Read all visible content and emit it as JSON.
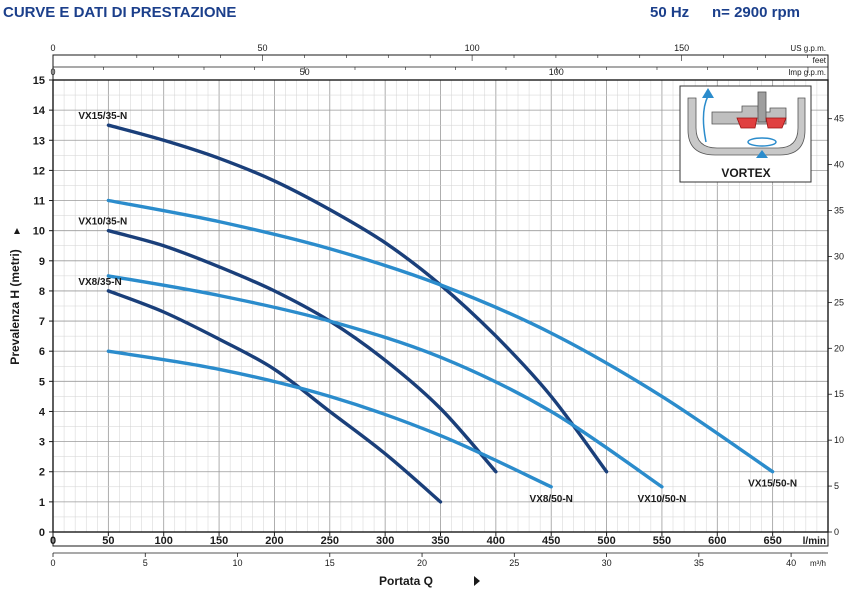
{
  "header": {
    "title": "CURVE E DATI DI PRESTAZIONE",
    "frequency": "50 Hz",
    "rpm": "n= 2900 rpm"
  },
  "chart_data": {
    "type": "line",
    "ylabel": "Prevalenza H (metri)",
    "xlabel": "Portata Q",
    "x_unit_main": "l/min",
    "x_unit_m3h": "m³/h",
    "x_unit_us": "US g.p.m.",
    "x_unit_imp": "Imp g.p.m.",
    "y_unit_feet": "feet",
    "xlim": [
      0,
      700
    ],
    "ylim": [
      0,
      15
    ],
    "grid": true,
    "x_ticks": [
      0,
      50,
      100,
      150,
      200,
      250,
      300,
      350,
      400,
      450,
      500,
      550,
      600,
      650
    ],
    "y_ticks": [
      0,
      1,
      2,
      3,
      4,
      5,
      6,
      7,
      8,
      9,
      10,
      11,
      12,
      13,
      14,
      15
    ],
    "m3h_ticks": [
      0,
      5,
      10,
      15,
      20,
      25,
      30,
      35,
      40
    ],
    "usgpm_ticks": [
      0,
      50,
      100,
      150
    ],
    "impgpm_ticks": [
      0,
      50,
      100
    ],
    "feet_ticks": [
      0,
      5,
      10,
      15,
      20,
      25,
      30,
      35,
      40,
      45
    ],
    "series": [
      {
        "name": "VX15/35-N",
        "color": "#1a3f7a",
        "label_pos": "start",
        "x": [
          50,
          100,
          150,
          200,
          250,
          300,
          350,
          400,
          450,
          500
        ],
        "y": [
          13.5,
          13.0,
          12.4,
          11.65,
          10.7,
          9.6,
          8.2,
          6.5,
          4.5,
          2.0
        ]
      },
      {
        "name": "VX10/35-N",
        "color": "#1a3f7a",
        "label_pos": "start",
        "x": [
          50,
          100,
          150,
          200,
          250,
          300,
          350,
          400
        ],
        "y": [
          10.0,
          9.5,
          8.8,
          8.0,
          7.0,
          5.7,
          4.1,
          2.0
        ]
      },
      {
        "name": "VX8/35-N",
        "color": "#1a3f7a",
        "label_pos": "start",
        "x": [
          50,
          100,
          150,
          200,
          250,
          300,
          350
        ],
        "y": [
          8.0,
          7.3,
          6.4,
          5.4,
          4.0,
          2.6,
          1.0
        ]
      },
      {
        "name": "VX15/50-N",
        "color": "#2b8ccc",
        "label_pos": "end",
        "x": [
          50,
          150,
          250,
          350,
          450,
          550,
          650
        ],
        "y": [
          11.0,
          10.3,
          9.4,
          8.2,
          6.6,
          4.5,
          2.0
        ]
      },
      {
        "name": "VX10/50-N",
        "color": "#2b8ccc",
        "label_pos": "end",
        "x": [
          50,
          150,
          250,
          350,
          450,
          550
        ],
        "y": [
          8.5,
          7.85,
          7.0,
          5.8,
          4.0,
          1.5
        ]
      },
      {
        "name": "VX8/50-N",
        "color": "#2b8ccc",
        "label_pos": "end",
        "x": [
          50,
          150,
          250,
          350,
          450
        ],
        "y": [
          6.0,
          5.4,
          4.5,
          3.2,
          1.5
        ]
      }
    ],
    "inset_label": "VORTEX"
  }
}
